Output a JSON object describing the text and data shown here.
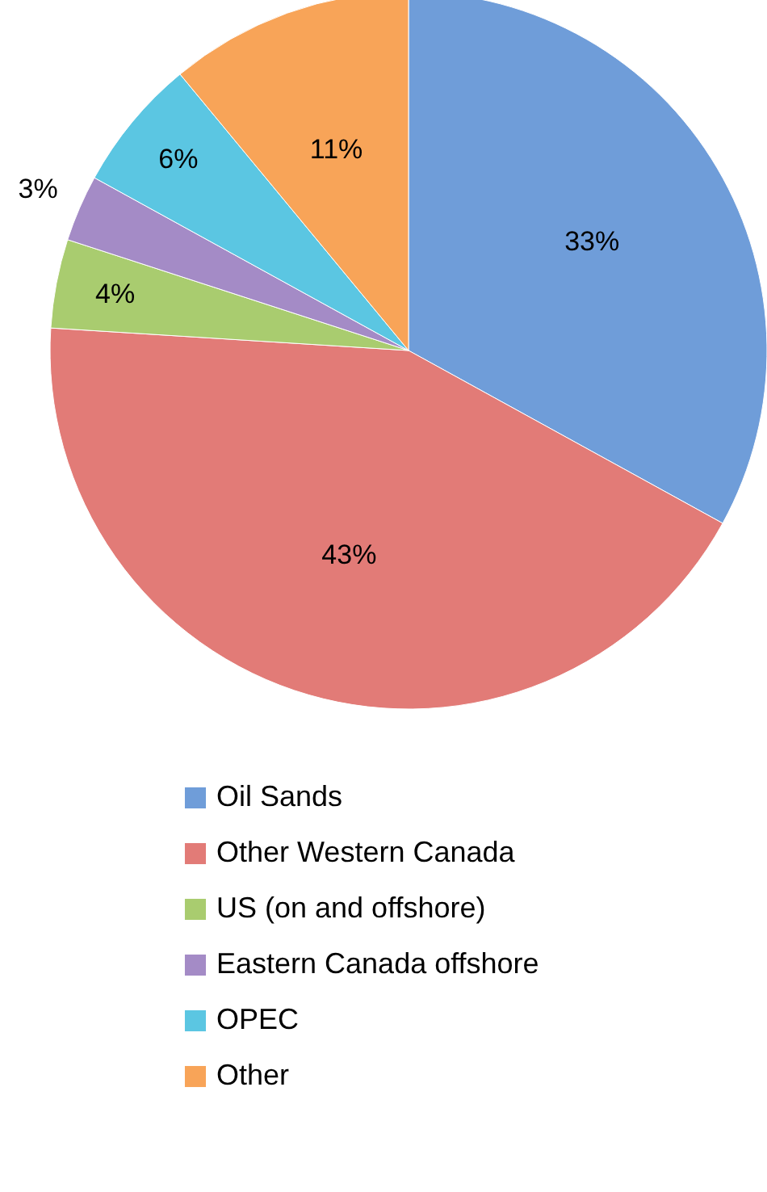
{
  "chart_data": {
    "type": "pie",
    "categories": [
      "Oil Sands",
      "Other Western Canada",
      "US (on and offshore)",
      "Eastern Canada offshore",
      "OPEC",
      "Other"
    ],
    "values": [
      33,
      43,
      4,
      3,
      6,
      11
    ],
    "value_labels": [
      "33%",
      "43%",
      "4%",
      "3%",
      "6%",
      "11%"
    ],
    "colors": [
      "#6f9dd9",
      "#e27b77",
      "#a9cc6f",
      "#a48bc6",
      "#5bc6e2",
      "#f8a458"
    ],
    "legend": "bottom"
  }
}
